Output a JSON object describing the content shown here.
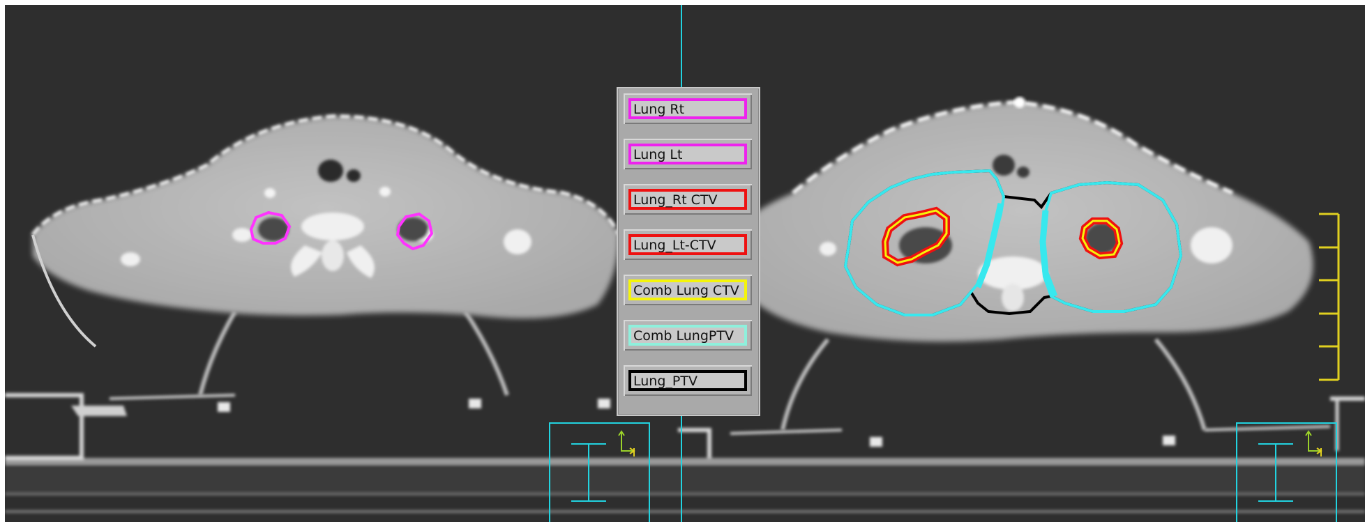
{
  "colors": {
    "background": "#2e2e2e",
    "crosshair": "#22d3e0",
    "tissue": "#bdbdbd",
    "contour_lung_rt": "#ff33ff",
    "contour_ctv": "#ee1111",
    "contour_comb_ctv": "#f5f50a",
    "contour_comb_ptv": "#38e8ee",
    "contour_ptv": "#000000",
    "scale_bar": "#e0d020",
    "orientation_marker": "#9bd22a"
  },
  "legend": {
    "items": [
      {
        "label": "Lung Rt",
        "border_color": "#ee22ee"
      },
      {
        "label": "Lung Lt",
        "border_color": "#ee22ee"
      },
      {
        "label": "Lung_Rt CTV",
        "border_color": "#ee1111"
      },
      {
        "label": "Lung_Lt-CTV",
        "border_color": "#ee1111"
      },
      {
        "label": "Comb Lung CTV",
        "border_color": "#f5f50a"
      },
      {
        "label": "Comb LungPTV",
        "border_color": "#8ef0dc"
      },
      {
        "label": "Lung_PTV",
        "border_color": "#000000"
      }
    ]
  },
  "icons": {
    "left_orientation": "orientation-axes-icon",
    "right_orientation": "orientation-axes-icon",
    "left_beam": "beam-i-icon",
    "right_beam": "beam-i-icon"
  }
}
